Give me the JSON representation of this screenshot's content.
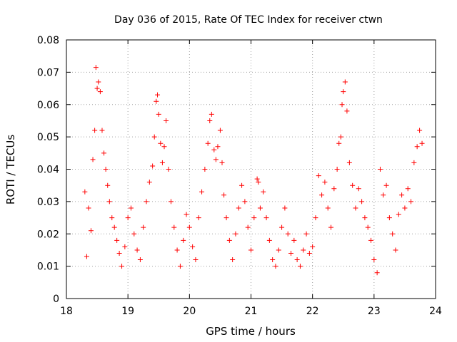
{
  "chart_data": {
    "type": "scatter",
    "title": "Day 036 of 2015, Rate Of TEC Index for receiver ctwn",
    "xlabel": "GPS time / hours",
    "ylabel": "ROTI / TECUs",
    "xlim": [
      18,
      24
    ],
    "ylim": [
      0,
      0.08
    ],
    "xticks": [
      18,
      19,
      20,
      21,
      22,
      23,
      24
    ],
    "xtick_labels": [
      "18",
      "19",
      "20",
      "21",
      "22",
      "23",
      "24"
    ],
    "yticks": [
      0,
      0.01,
      0.02,
      0.03,
      0.04,
      0.05,
      0.06,
      0.07,
      0.08
    ],
    "ytick_labels": [
      "0",
      "0.01",
      "0.02",
      "0.03",
      "0.04",
      "0.05",
      "0.06",
      "0.07",
      "0.08"
    ],
    "grid": true,
    "marker": "+",
    "color": "#ff0000",
    "series": [
      {
        "name": "ROTI",
        "x": [
          18.3,
          18.33,
          18.36,
          18.4,
          18.43,
          18.46,
          18.48,
          18.5,
          18.52,
          18.55,
          18.58,
          18.61,
          18.64,
          18.67,
          18.7,
          18.74,
          18.78,
          18.82,
          18.86,
          18.9,
          18.95,
          19.0,
          19.05,
          19.1,
          19.15,
          19.2,
          19.25,
          19.3,
          19.35,
          19.4,
          19.43,
          19.46,
          19.48,
          19.5,
          19.53,
          19.56,
          19.59,
          19.62,
          19.66,
          19.7,
          19.75,
          19.8,
          19.85,
          19.9,
          19.95,
          20.0,
          20.05,
          20.1,
          20.15,
          20.2,
          20.25,
          20.3,
          20.33,
          20.36,
          20.4,
          20.43,
          20.46,
          20.5,
          20.53,
          20.56,
          20.6,
          20.65,
          20.7,
          20.75,
          20.8,
          20.85,
          20.9,
          20.95,
          21.0,
          21.05,
          21.1,
          21.12,
          21.15,
          21.2,
          21.25,
          21.3,
          21.35,
          21.4,
          21.45,
          21.5,
          21.55,
          21.6,
          21.65,
          21.7,
          21.75,
          21.8,
          21.85,
          21.9,
          21.95,
          22.0,
          22.05,
          22.1,
          22.15,
          22.2,
          22.25,
          22.3,
          22.35,
          22.4,
          22.43,
          22.46,
          22.48,
          22.5,
          22.53,
          22.56,
          22.6,
          22.65,
          22.7,
          22.75,
          22.8,
          22.85,
          22.9,
          22.95,
          23.0,
          23.05,
          23.1,
          23.15,
          23.2,
          23.25,
          23.3,
          23.35,
          23.4,
          23.45,
          23.5,
          23.55,
          23.6,
          23.65,
          23.7,
          23.74,
          23.78
        ],
        "y": [
          0.033,
          0.013,
          0.028,
          0.021,
          0.043,
          0.052,
          0.0715,
          0.065,
          0.067,
          0.064,
          0.052,
          0.045,
          0.04,
          0.035,
          0.03,
          0.025,
          0.022,
          0.018,
          0.014,
          0.01,
          0.016,
          0.025,
          0.028,
          0.02,
          0.015,
          0.012,
          0.022,
          0.03,
          0.036,
          0.041,
          0.05,
          0.061,
          0.063,
          0.057,
          0.048,
          0.042,
          0.047,
          0.055,
          0.04,
          0.03,
          0.022,
          0.015,
          0.01,
          0.018,
          0.026,
          0.022,
          0.016,
          0.012,
          0.025,
          0.033,
          0.04,
          0.048,
          0.055,
          0.057,
          0.046,
          0.043,
          0.047,
          0.052,
          0.042,
          0.032,
          0.025,
          0.018,
          0.012,
          0.02,
          0.028,
          0.035,
          0.03,
          0.022,
          0.015,
          0.025,
          0.037,
          0.036,
          0.028,
          0.033,
          0.025,
          0.018,
          0.012,
          0.01,
          0.015,
          0.022,
          0.028,
          0.02,
          0.014,
          0.018,
          0.012,
          0.01,
          0.015,
          0.02,
          0.014,
          0.016,
          0.025,
          0.038,
          0.032,
          0.036,
          0.028,
          0.022,
          0.034,
          0.04,
          0.048,
          0.05,
          0.06,
          0.064,
          0.067,
          0.058,
          0.042,
          0.035,
          0.028,
          0.034,
          0.03,
          0.025,
          0.022,
          0.018,
          0.012,
          0.008,
          0.04,
          0.032,
          0.035,
          0.025,
          0.02,
          0.015,
          0.026,
          0.032,
          0.028,
          0.034,
          0.03,
          0.042,
          0.047,
          0.052,
          0.048
        ]
      }
    ]
  }
}
